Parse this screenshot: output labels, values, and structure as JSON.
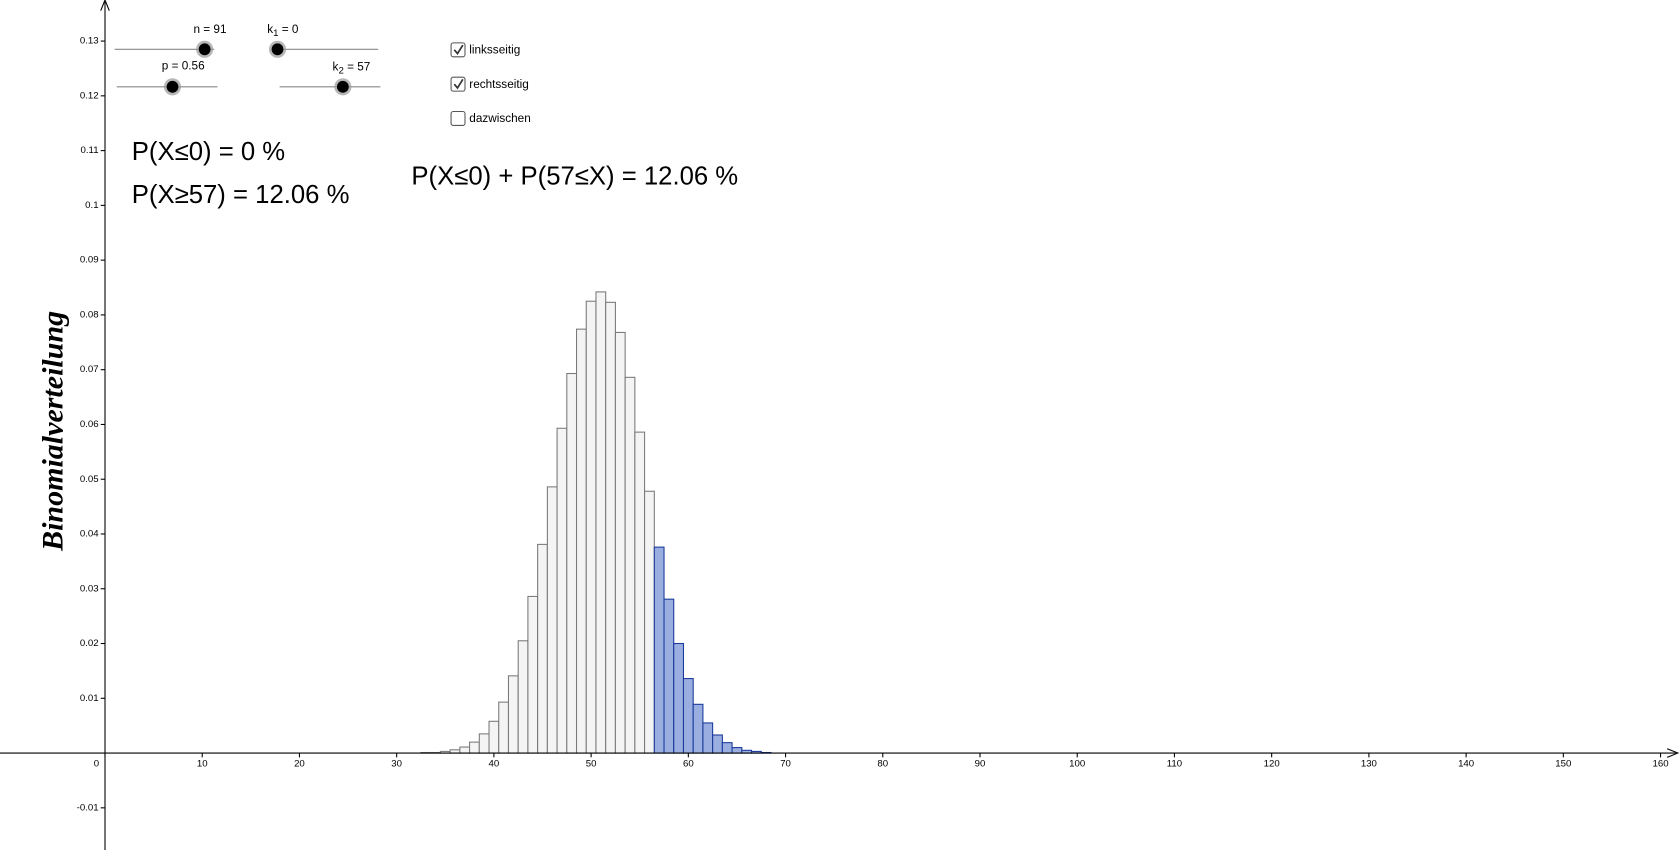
{
  "chart_data": {
    "type": "bar",
    "y_label": "Binomialverteilung",
    "x": [
      33,
      34,
      35,
      36,
      37,
      38,
      39,
      40,
      41,
      42,
      43,
      44,
      45,
      46,
      47,
      48,
      49,
      50,
      51,
      52,
      53,
      54,
      55,
      56,
      57,
      58,
      59,
      60,
      61,
      62,
      63,
      64,
      65,
      66,
      67,
      68
    ],
    "values": [
      0.0001,
      0.0001,
      0.0003,
      0.0006,
      0.0011,
      0.002,
      0.0035,
      0.0058,
      0.0093,
      0.0141,
      0.0205,
      0.0286,
      0.0381,
      0.0486,
      0.0593,
      0.0693,
      0.0774,
      0.0825,
      0.0842,
      0.0823,
      0.0768,
      0.0686,
      0.0586,
      0.0478,
      0.0376,
      0.0281,
      0.02,
      0.0136,
      0.0089,
      0.0055,
      0.0033,
      0.0019,
      0.001,
      0.0005,
      0.0003,
      0.0001
    ],
    "color": "#f4f4f4",
    "edge_color": "#7a7a7a",
    "highlight_color": "#9aaee0",
    "highlight_edge_color": "#1a3a9c",
    "highlight_at_most": 0,
    "highlight_at_least": 57,
    "xlim": [
      -10.8,
      162
    ],
    "ylim": [
      -0.0177,
      0.1375
    ],
    "xticks": [
      0,
      10,
      20,
      30,
      40,
      50,
      60,
      70,
      80,
      90,
      100,
      110,
      120,
      130,
      140,
      150,
      160
    ],
    "yticks": [
      -0.01,
      0.01,
      0.02,
      0.03,
      0.04,
      0.05,
      0.06,
      0.07,
      0.08,
      0.09,
      0.1,
      0.11,
      0.12,
      0.13
    ]
  },
  "sliders": [
    {
      "name": "n",
      "sub": "",
      "rest": " = 91"
    },
    {
      "name": "k",
      "sub": "1",
      "rest": " = 0"
    },
    {
      "name": "p",
      "sub": "",
      "rest": " = 0.56"
    },
    {
      "name": "k",
      "sub": "2",
      "rest": " = 57"
    }
  ],
  "checkboxes": [
    {
      "label": "linksseitig",
      "checked": true
    },
    {
      "label": "rechtsseitig",
      "checked": true
    },
    {
      "label": "dazwischen",
      "checked": false
    }
  ],
  "results": {
    "left": "P(X≤0) = 0 %",
    "right": "P(X≥57) = 12.06 %",
    "total": "P(X≤0) + P(57≤X) = 12.06 %"
  }
}
